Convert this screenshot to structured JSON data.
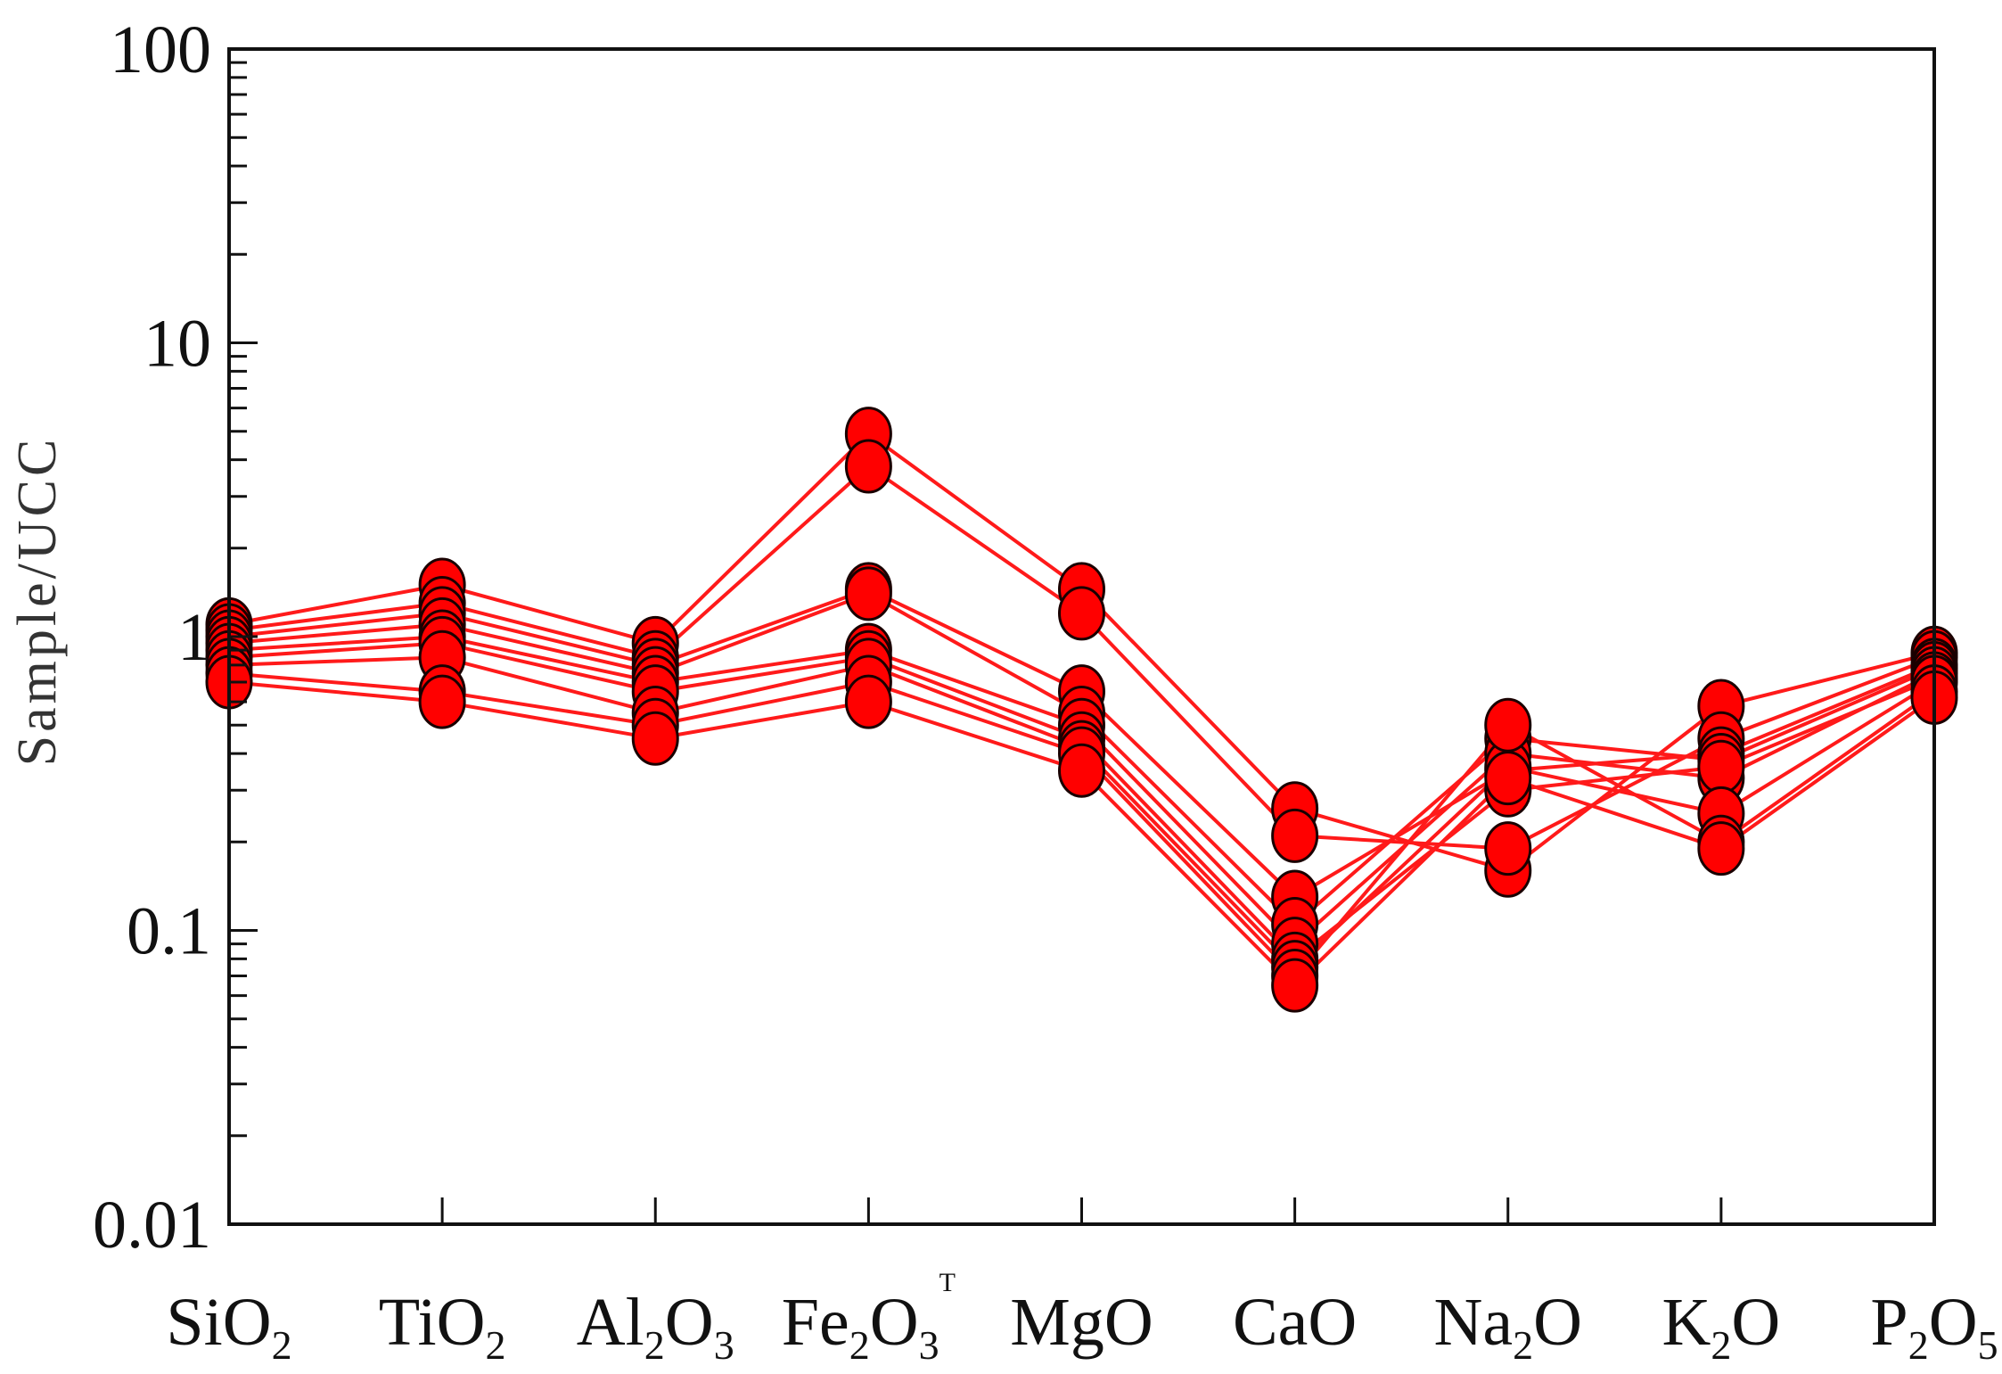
{
  "chart_data": {
    "type": "line",
    "title": "",
    "xlabel": "",
    "ylabel": "Sample/UCC",
    "y_scale": "log",
    "ylim": [
      0.01,
      100
    ],
    "y_ticks": [
      "100",
      "10",
      "1",
      "0.1",
      "0.01"
    ],
    "grid": false,
    "legend": "none",
    "categories": [
      {
        "base": "SiO",
        "sub": "2"
      },
      {
        "base": "TiO",
        "sub": "2"
      },
      {
        "base": "Al",
        "sub": "2",
        "base2": "O",
        "sub2": "3"
      },
      {
        "base": "Fe",
        "sub": "2",
        "base2": "O",
        "sub2": "3",
        "sup": "T"
      },
      {
        "base": "MgO"
      },
      {
        "base": "CaO"
      },
      {
        "base": "Na",
        "sub": "2",
        "base2": "O"
      },
      {
        "base": "K",
        "sub": "2",
        "base2": "O"
      },
      {
        "base": "P",
        "sub": "2",
        "base2": "O",
        "sub2": "5"
      }
    ],
    "line_color": "#ff1a1a",
    "marker_fill": "#ff0000",
    "marker_edge": "#1a0000",
    "series": [
      {
        "values": [
          1.1,
          1.5,
          0.95,
          4.9,
          1.45,
          0.26,
          0.16,
          0.58,
          0.88
        ]
      },
      {
        "values": [
          1.05,
          1.3,
          0.85,
          3.8,
          1.2,
          0.21,
          0.19,
          0.45,
          0.85
        ]
      },
      {
        "values": [
          1.0,
          1.2,
          0.8,
          1.45,
          0.65,
          0.13,
          0.35,
          0.4,
          0.8
        ]
      },
      {
        "values": [
          0.95,
          1.1,
          0.75,
          1.4,
          0.55,
          0.105,
          0.45,
          0.38,
          0.78
        ]
      },
      {
        "values": [
          0.9,
          1.0,
          0.7,
          0.9,
          0.5,
          0.09,
          0.4,
          0.33,
          0.75
        ]
      },
      {
        "values": [
          0.85,
          0.95,
          0.65,
          0.85,
          0.45,
          0.08,
          0.3,
          0.36,
          0.72
        ]
      },
      {
        "values": [
          0.8,
          0.85,
          0.55,
          0.8,
          0.42,
          0.075,
          0.36,
          0.25,
          0.7
        ]
      },
      {
        "values": [
          0.75,
          0.65,
          0.5,
          0.7,
          0.4,
          0.07,
          0.5,
          0.2,
          0.65
        ]
      },
      {
        "values": [
          0.7,
          0.6,
          0.45,
          0.6,
          0.35,
          0.065,
          0.33,
          0.19,
          0.62
        ]
      }
    ]
  }
}
